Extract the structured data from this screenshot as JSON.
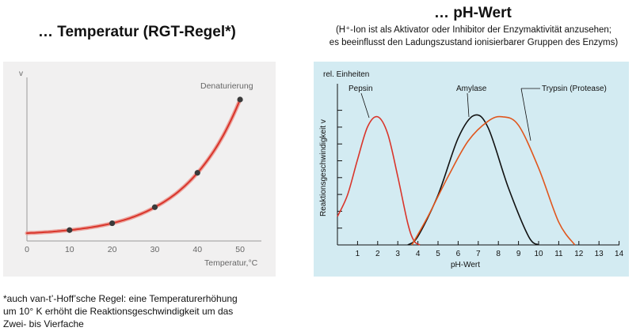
{
  "left_title": "… Temperatur (RGT-Regel*)",
  "right_title": "… pH-Wert",
  "right_subtitle_line1": "(H⁺-Ion ist als Aktivator oder Inhibitor der Enzymaktivität anzusehen;",
  "right_subtitle_line2": "es beeinflusst den Ladungszustand ionisierbarer Gruppen des Enzyms)",
  "footnote": {
    "line1": "*auch van-t’-Hoff’sche Regel: eine Temperaturerhöhung",
    "line2": "um 10° K erhöht die Reaktionsgeschwindigkeit um das",
    "line3": "Zwei- bis Vierfache"
  },
  "colors": {
    "left_background": "#f1f0f0",
    "right_background": "#d3ebf2",
    "temperature_curve": "#d9352b",
    "pepsin": "#d9352b",
    "amylase": "#111111",
    "trypsin": "#e0561d"
  },
  "chart_data": [
    {
      "type": "line",
      "ylabel": "v",
      "xlabel": "Temperatur,°C",
      "xlim": [
        0,
        55
      ],
      "xticks": [
        0,
        10,
        20,
        30,
        40,
        50
      ],
      "annotations": [
        "Denaturierung"
      ],
      "series": [
        {
          "x": [
            0,
            10,
            20,
            30,
            40,
            50
          ],
          "y": [
            0.3,
            0.7,
            1.6,
            3.7,
            8.2,
            17.8
          ]
        }
      ],
      "grid": false
    },
    {
      "type": "line",
      "ylabel": "Reaktionsgeschwindigkeit v",
      "ylabel_top": "rel. Einheiten",
      "xlabel": "pH-Wert",
      "xlim": [
        0,
        14
      ],
      "xticks": [
        1,
        2,
        3,
        4,
        5,
        6,
        7,
        8,
        9,
        10,
        11,
        12,
        13,
        14
      ],
      "grid": false,
      "series": [
        {
          "name": "Pepsin",
          "x": [
            0,
            0.5,
            1,
            1.5,
            2,
            2.5,
            3,
            3.5,
            3.8,
            4.1
          ],
          "y": [
            2.0,
            3.5,
            6.0,
            8.3,
            9.0,
            7.8,
            4.8,
            1.5,
            0.3,
            0.0
          ]
        },
        {
          "name": "Amylase",
          "x": [
            3.5,
            4,
            5,
            6,
            6.8,
            7.5,
            8.5,
            9.5,
            10.0
          ],
          "y": [
            0.0,
            0.6,
            3.5,
            7.5,
            9.1,
            8.2,
            4.0,
            0.6,
            0.0
          ]
        },
        {
          "name": "Trypsin (Protease)",
          "x": [
            3.7,
            4.5,
            5.5,
            6.5,
            7.5,
            8.2,
            9,
            10,
            11,
            11.8
          ],
          "y": [
            0.0,
            2.0,
            4.8,
            7.3,
            8.7,
            9.0,
            8.4,
            5.4,
            1.6,
            0.0
          ]
        }
      ]
    }
  ]
}
